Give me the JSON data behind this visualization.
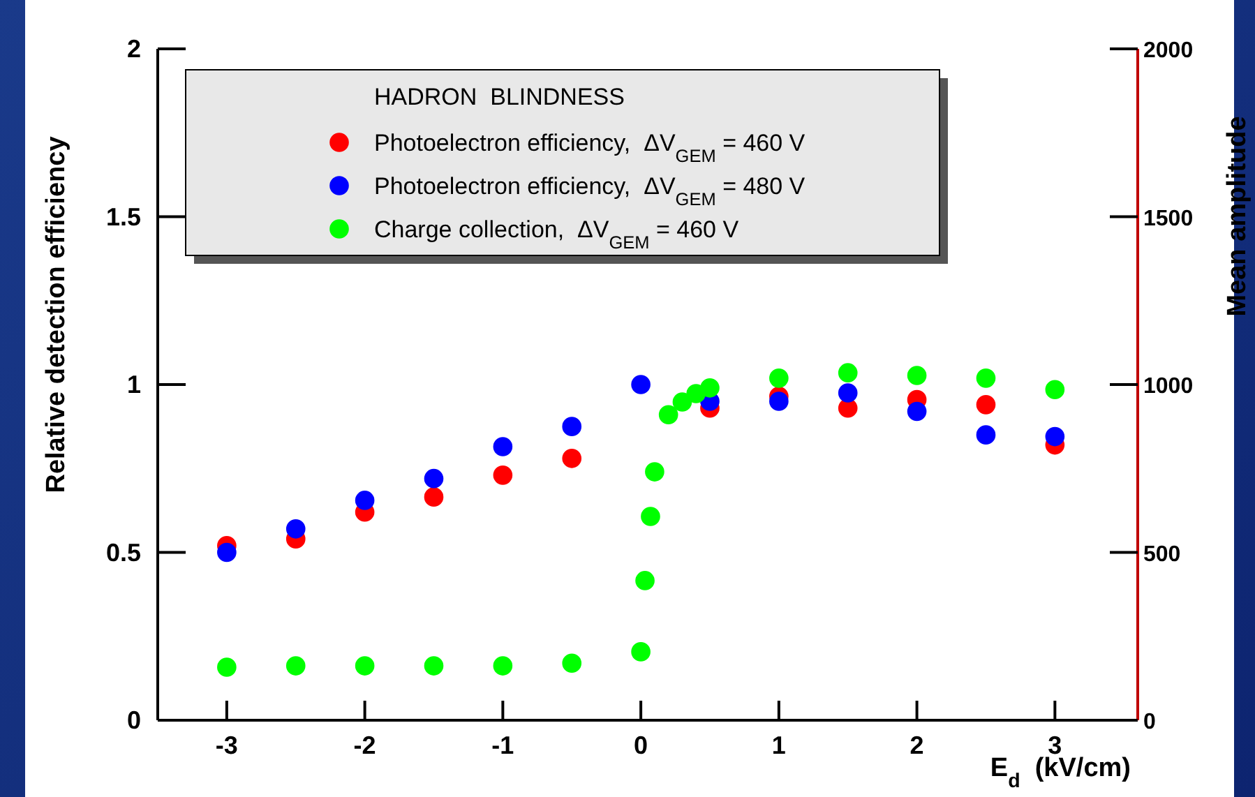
{
  "chart_data": {
    "type": "scatter",
    "xlabel": "E$_{d}$  (kV/cm)",
    "ylabel": "Relative detection efficiency",
    "y2label": "Mean amplitude",
    "legend_title": "HADRON  BLINDNESS",
    "legend": "top left",
    "marker": "circle",
    "grid": false,
    "xlim": [
      -3.5,
      3.6
    ],
    "xticks": [
      -3,
      -2,
      -1,
      0,
      1,
      2,
      3
    ],
    "ylim": [
      0,
      2
    ],
    "yticks": [
      0,
      0.5,
      1,
      1.5,
      2
    ],
    "y2lim": [
      0,
      2000
    ],
    "y2ticks": [
      0,
      500,
      1000,
      1500,
      2000
    ],
    "series": [
      {
        "name": "Photoelectron efficiency,  ΔV$_{GEM}$ = 460 V",
        "color": "#ff0000",
        "x": [
          -3,
          -2.5,
          -2,
          -1.5,
          -1,
          -0.5,
          0.5,
          1,
          1.5,
          2,
          2.5,
          3
        ],
        "values": [
          0.52,
          0.54,
          0.62,
          0.665,
          0.73,
          0.78,
          0.93,
          0.965,
          0.93,
          0.955,
          0.94,
          0.82
        ]
      },
      {
        "name": "Photoelectron efficiency,  ΔV$_{GEM}$ = 480 V",
        "color": "#0000ff",
        "x": [
          -3,
          -2.5,
          -2,
          -1.5,
          -1,
          -0.5,
          0,
          0.5,
          1,
          1.5,
          2,
          2.5,
          3
        ],
        "values": [
          0.5,
          0.57,
          0.655,
          0.72,
          0.815,
          0.875,
          1.0,
          0.95,
          0.95,
          0.975,
          0.92,
          0.85,
          0.845
        ]
      },
      {
        "name": "Charge collection,  ΔV$_{GEM}$ = 460 V",
        "color": "#00ff00",
        "axis": "y2",
        "x": [
          -3,
          -2.5,
          -2,
          -1.5,
          -1,
          -0.5,
          0,
          0.03,
          0.07,
          0.1,
          0.2,
          0.3,
          0.4,
          0.5,
          1,
          1.5,
          2,
          2.5,
          3
        ],
        "values": [
          158,
          162,
          162,
          162,
          162,
          170,
          204,
          416,
          607,
          740,
          910,
          948,
          973,
          990,
          1019,
          1035,
          1027,
          1019,
          985
        ]
      }
    ]
  }
}
